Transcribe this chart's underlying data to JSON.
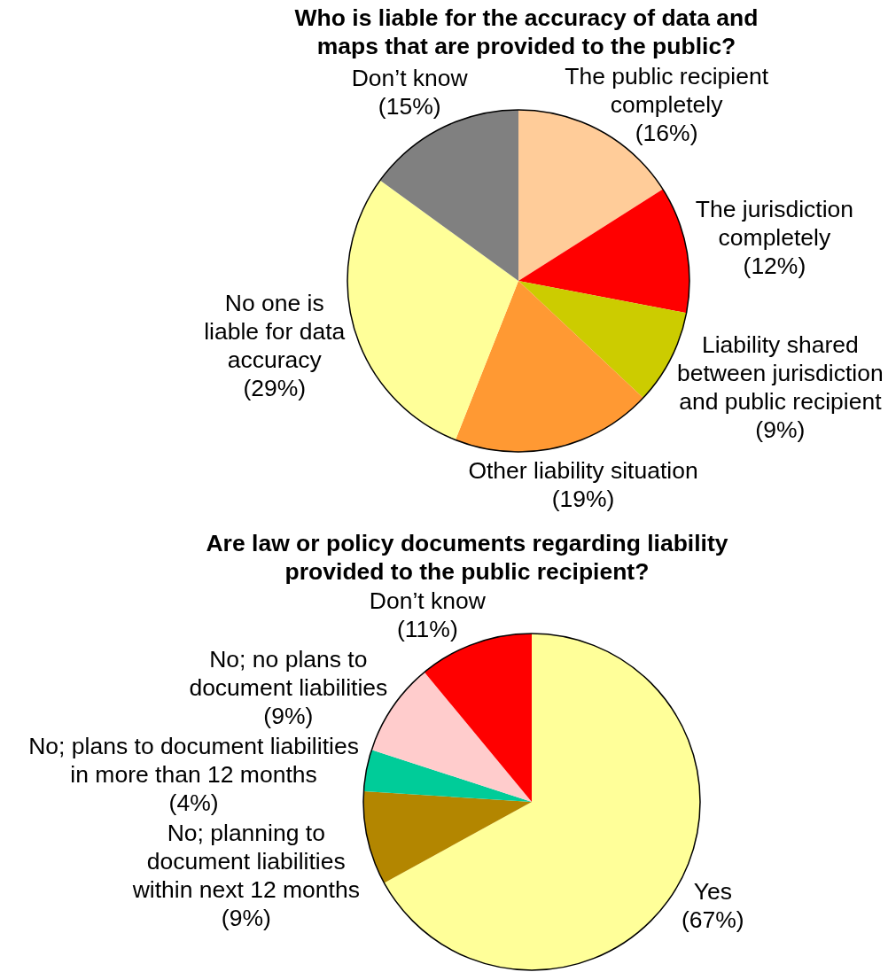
{
  "chart_data": [
    {
      "type": "pie",
      "title": "Who is liable for the accuracy of data and maps that are provided to the public?",
      "categories": [
        "The public recipient completely",
        "The jurisdiction completely",
        "Liability shared between jurisdiction and public recipient",
        "Other liability situation",
        "No one is liable for data accuracy",
        "Don’t know"
      ],
      "values": [
        16,
        12,
        9,
        19,
        29,
        15
      ],
      "colors": [
        "#ffcc99",
        "#ff0000",
        "#cccc00",
        "#ff9933",
        "#ffff99",
        "#808080"
      ],
      "value_labels": [
        "(16%)",
        "(12%)",
        "(9%)",
        "(19%)",
        "(29%)",
        "(15%)"
      ]
    },
    {
      "type": "pie",
      "title": "Are law or policy documents regarding liability provided to the public recipient?",
      "categories": [
        "Yes",
        "No; planning to document liabilities within next 12 months",
        "No; plans to document liabilities in more than 12 months",
        "No; no plans to document liabilities",
        "Don’t know"
      ],
      "values": [
        67,
        9,
        4,
        9,
        11
      ],
      "colors": [
        "#ffff99",
        "#b38600",
        "#00cc99",
        "#ffcccc",
        "#ff0000"
      ],
      "value_labels": [
        "(67%)",
        "(9%)",
        "(4%)",
        "(9%)",
        "(11%)"
      ]
    }
  ]
}
